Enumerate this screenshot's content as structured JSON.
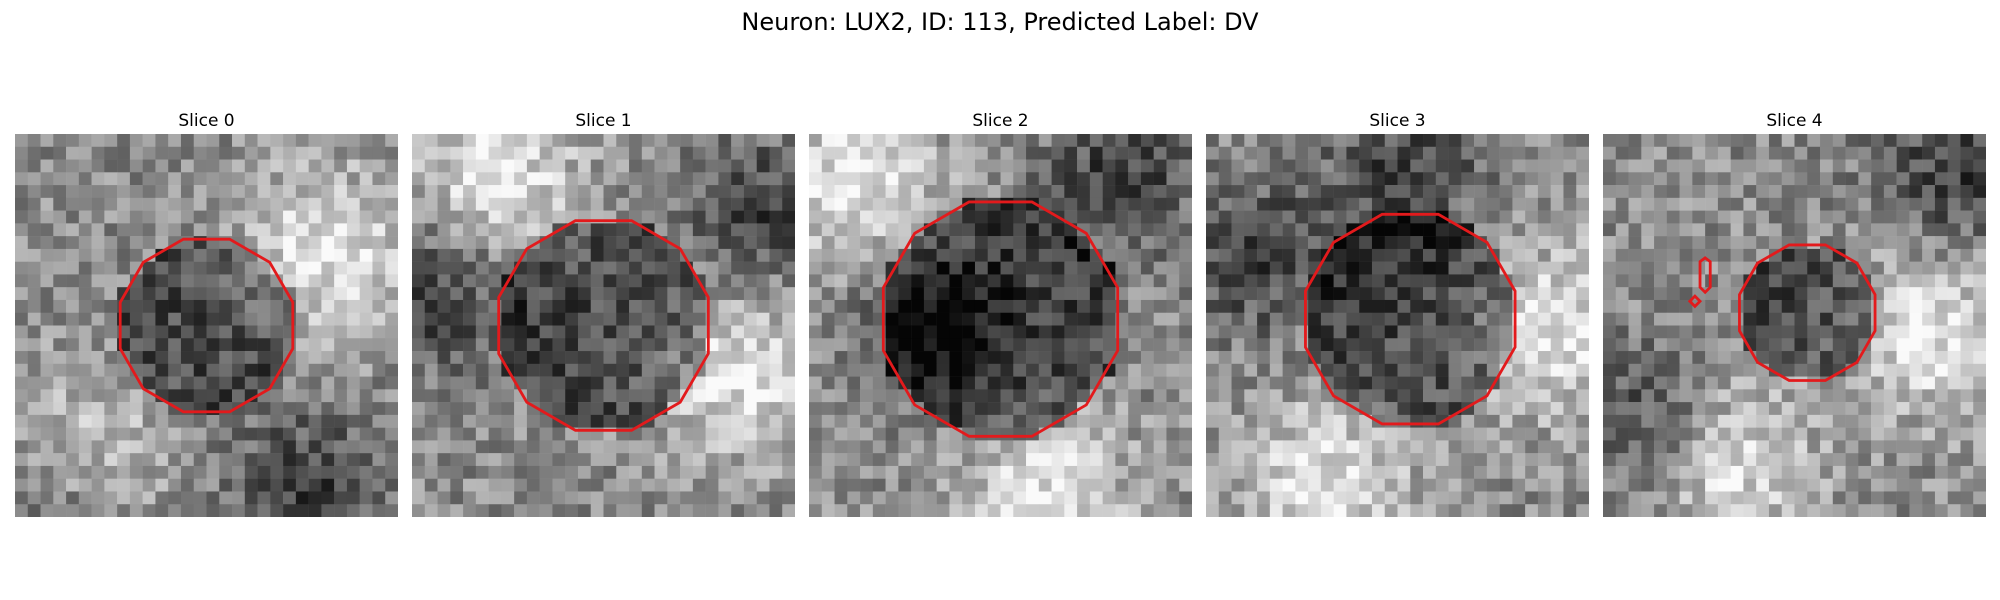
{
  "figure": {
    "title": "Neuron: LUX2, ID: 113, Predicted Label: DV",
    "contour_color": "#e31a1c",
    "panels": [
      {
        "title": "Slice 0",
        "seed": 11,
        "center": [
          15,
          15
        ],
        "radius": 7,
        "bright": [
          [
            0.15,
            0.85
          ],
          [
            0.8,
            0.3
          ]
        ],
        "dark": [
          [
            0.75,
            0.9
          ],
          [
            0.1,
            0.95
          ]
        ]
      },
      {
        "title": "Slice 1",
        "seed": 23,
        "center": [
          15,
          15
        ],
        "radius": 8.5,
        "bright": [
          [
            0.2,
            0.1
          ],
          [
            0.85,
            0.6
          ]
        ],
        "dark": [
          [
            0.9,
            0.2
          ],
          [
            0.05,
            0.4
          ]
        ]
      },
      {
        "title": "Slice 2",
        "seed": 37,
        "center": [
          15,
          14.5
        ],
        "radius": 9.5,
        "bright": [
          [
            0.6,
            0.95
          ],
          [
            0.1,
            0.1
          ]
        ],
        "dark": [
          [
            0.8,
            0.1
          ],
          [
            0.3,
            0.5
          ]
        ]
      },
      {
        "title": "Slice 3",
        "seed": 41,
        "center": [
          16,
          14.5
        ],
        "radius": 8.5,
        "bright": [
          [
            0.3,
            0.9
          ],
          [
            0.9,
            0.5
          ]
        ],
        "dark": [
          [
            0.1,
            0.3
          ],
          [
            0.5,
            0.1
          ]
        ]
      },
      {
        "title": "Slice 4",
        "seed": 53,
        "center": [
          16,
          14
        ],
        "radius": 5.5,
        "bright": [
          [
            0.3,
            0.85
          ],
          [
            0.85,
            0.5
          ]
        ],
        "dark": [
          [
            0.1,
            0.75
          ],
          [
            0.9,
            0.1
          ]
        ]
      }
    ]
  }
}
